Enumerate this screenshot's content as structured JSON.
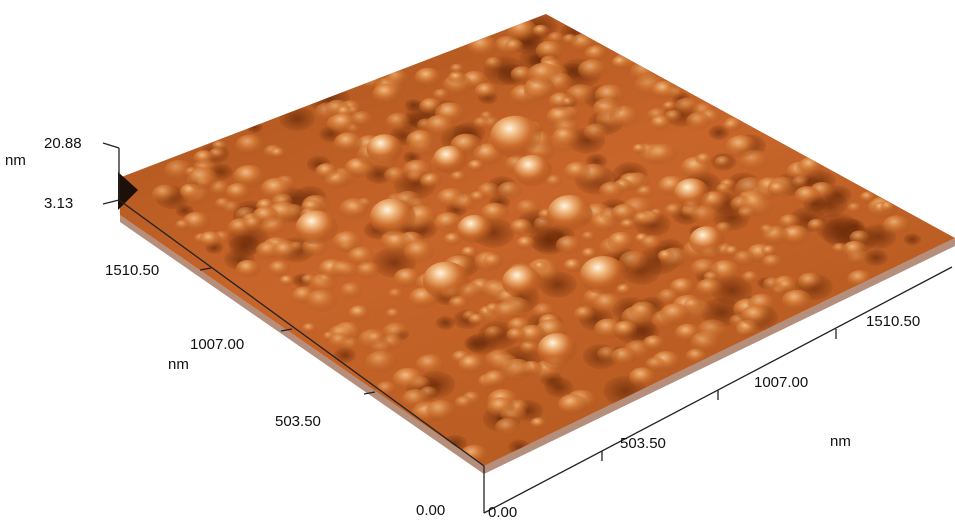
{
  "z_axis": {
    "max_label": "20.88",
    "min_label": "3.13",
    "unit": "nm",
    "max": 20.88,
    "min": 3.13
  },
  "y_axis": {
    "ticks": [
      "1510.50",
      "1007.00",
      "503.50",
      "0.00"
    ],
    "unit": "nm"
  },
  "x_axis": {
    "ticks": [
      "0.00",
      "503.50",
      "1007.00",
      "1510.50"
    ],
    "unit": "nm"
  },
  "colors": {
    "surface_dark": "#5a2407",
    "surface_mid": "#b8561c",
    "surface_light": "#e08a45",
    "surface_peak": "#fbe8cc",
    "axis": "#222222"
  }
}
